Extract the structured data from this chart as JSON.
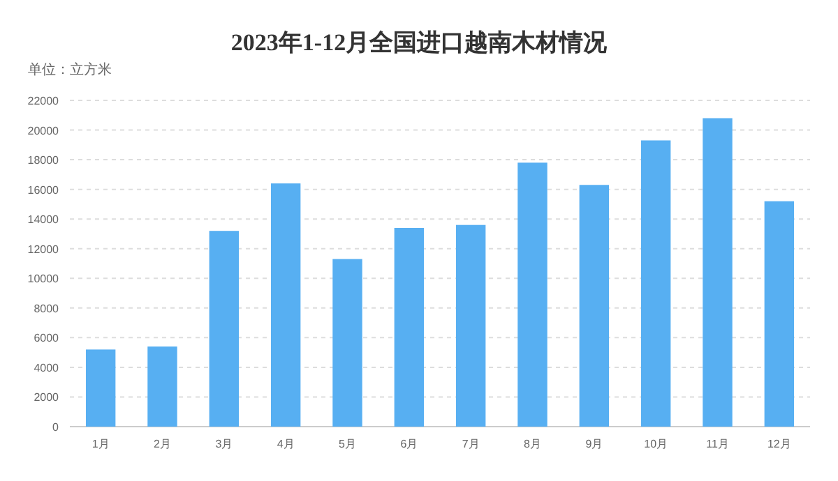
{
  "chart_data": {
    "type": "bar",
    "title": "2023年1-12月全国进口越南木材情况",
    "ylabel": "单位：立方米",
    "categories": [
      "1月",
      "2月",
      "3月",
      "4月",
      "5月",
      "6月",
      "7月",
      "8月",
      "9月",
      "10月",
      "11月",
      "12月"
    ],
    "values": [
      5200,
      5400,
      13200,
      16400,
      11300,
      13400,
      13600,
      17800,
      16300,
      19300,
      20800,
      15200
    ],
    "color": "#57aff2",
    "ylim": [
      0,
      22000
    ],
    "yticks": [
      0,
      2000,
      4000,
      6000,
      8000,
      10000,
      12000,
      14000,
      16000,
      18000,
      20000,
      22000
    ],
    "grid": "y"
  }
}
